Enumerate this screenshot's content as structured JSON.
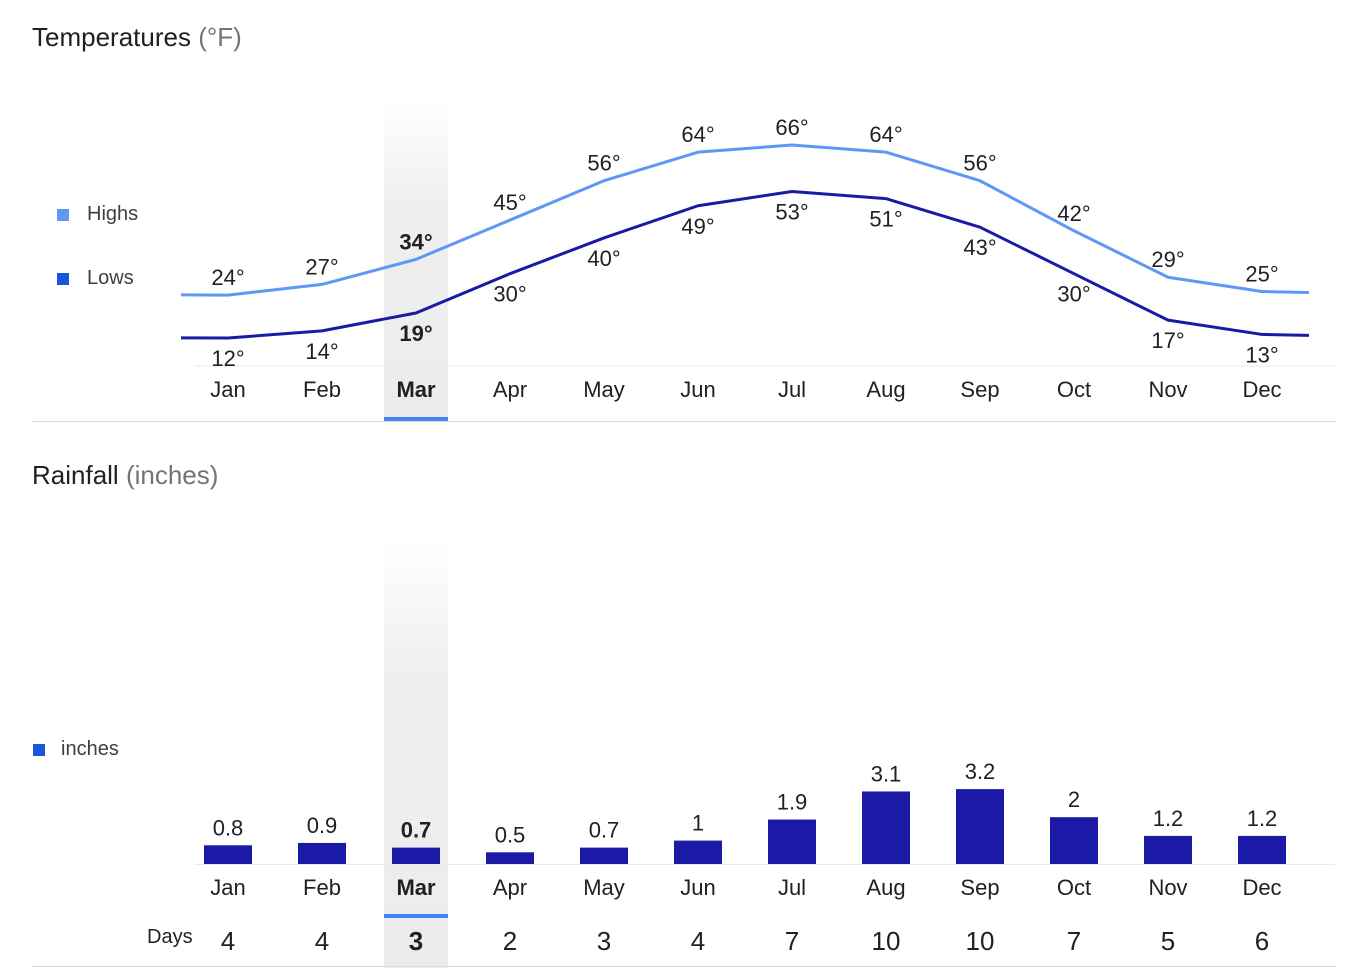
{
  "temperature": {
    "title": "Temperatures",
    "unit": "(°F)",
    "legend": [
      {
        "label": "Highs",
        "color": "#5e97f6"
      },
      {
        "label": "Lows",
        "color": "#1a1aa6"
      }
    ]
  },
  "rainfall": {
    "title": "Rainfall",
    "unit": "(inches)",
    "legend": [
      {
        "label": "inches",
        "color": "#1a56db"
      }
    ],
    "days_label": "Days"
  },
  "selected_month": "Mar",
  "chart_data": [
    {
      "type": "line",
      "title": "Temperatures (°F)",
      "categories": [
        "Jan",
        "Feb",
        "Mar",
        "Apr",
        "May",
        "Jun",
        "Jul",
        "Aug",
        "Sep",
        "Oct",
        "Nov",
        "Dec"
      ],
      "series": [
        {
          "name": "Highs",
          "color": "#5e97f6",
          "values": [
            24,
            27,
            34,
            45,
            56,
            64,
            66,
            64,
            56,
            42,
            29,
            25
          ]
        },
        {
          "name": "Lows",
          "color": "#1a1aa6",
          "values": [
            12,
            14,
            19,
            30,
            40,
            49,
            53,
            51,
            43,
            30,
            17,
            13
          ]
        }
      ],
      "value_suffix": "°",
      "grid": false,
      "legend_position": "left"
    },
    {
      "type": "bar",
      "title": "Rainfall (inches)",
      "categories": [
        "Jan",
        "Feb",
        "Mar",
        "Apr",
        "May",
        "Jun",
        "Jul",
        "Aug",
        "Sep",
        "Oct",
        "Nov",
        "Dec"
      ],
      "series": [
        {
          "name": "inches",
          "color": "#1a1aa6",
          "values": [
            0.8,
            0.9,
            0.7,
            0.5,
            0.7,
            1,
            1.9,
            3.1,
            3.2,
            2,
            1.2,
            1.2
          ]
        }
      ],
      "days": [
        4,
        4,
        3,
        2,
        3,
        4,
        7,
        10,
        10,
        7,
        5,
        6
      ],
      "grid": false,
      "legend_position": "left"
    }
  ]
}
